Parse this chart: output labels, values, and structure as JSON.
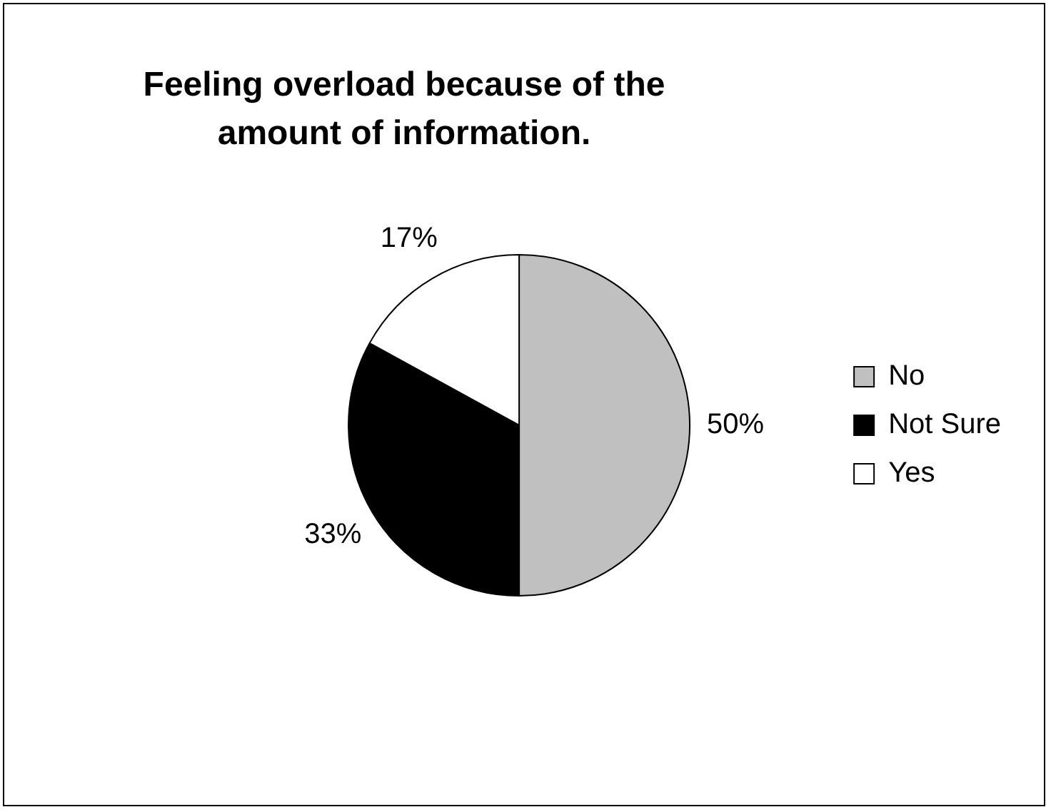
{
  "chart_data": {
    "type": "pie",
    "title": "Feeling overload because of the amount of information.",
    "categories": [
      "No",
      "Not Sure",
      "Yes"
    ],
    "values": [
      50,
      33,
      17
    ],
    "value_labels": [
      "50%",
      "33%",
      "17%"
    ],
    "colors": [
      "#c0c0c0",
      "#000000",
      "#ffffff"
    ],
    "legend": "right"
  }
}
